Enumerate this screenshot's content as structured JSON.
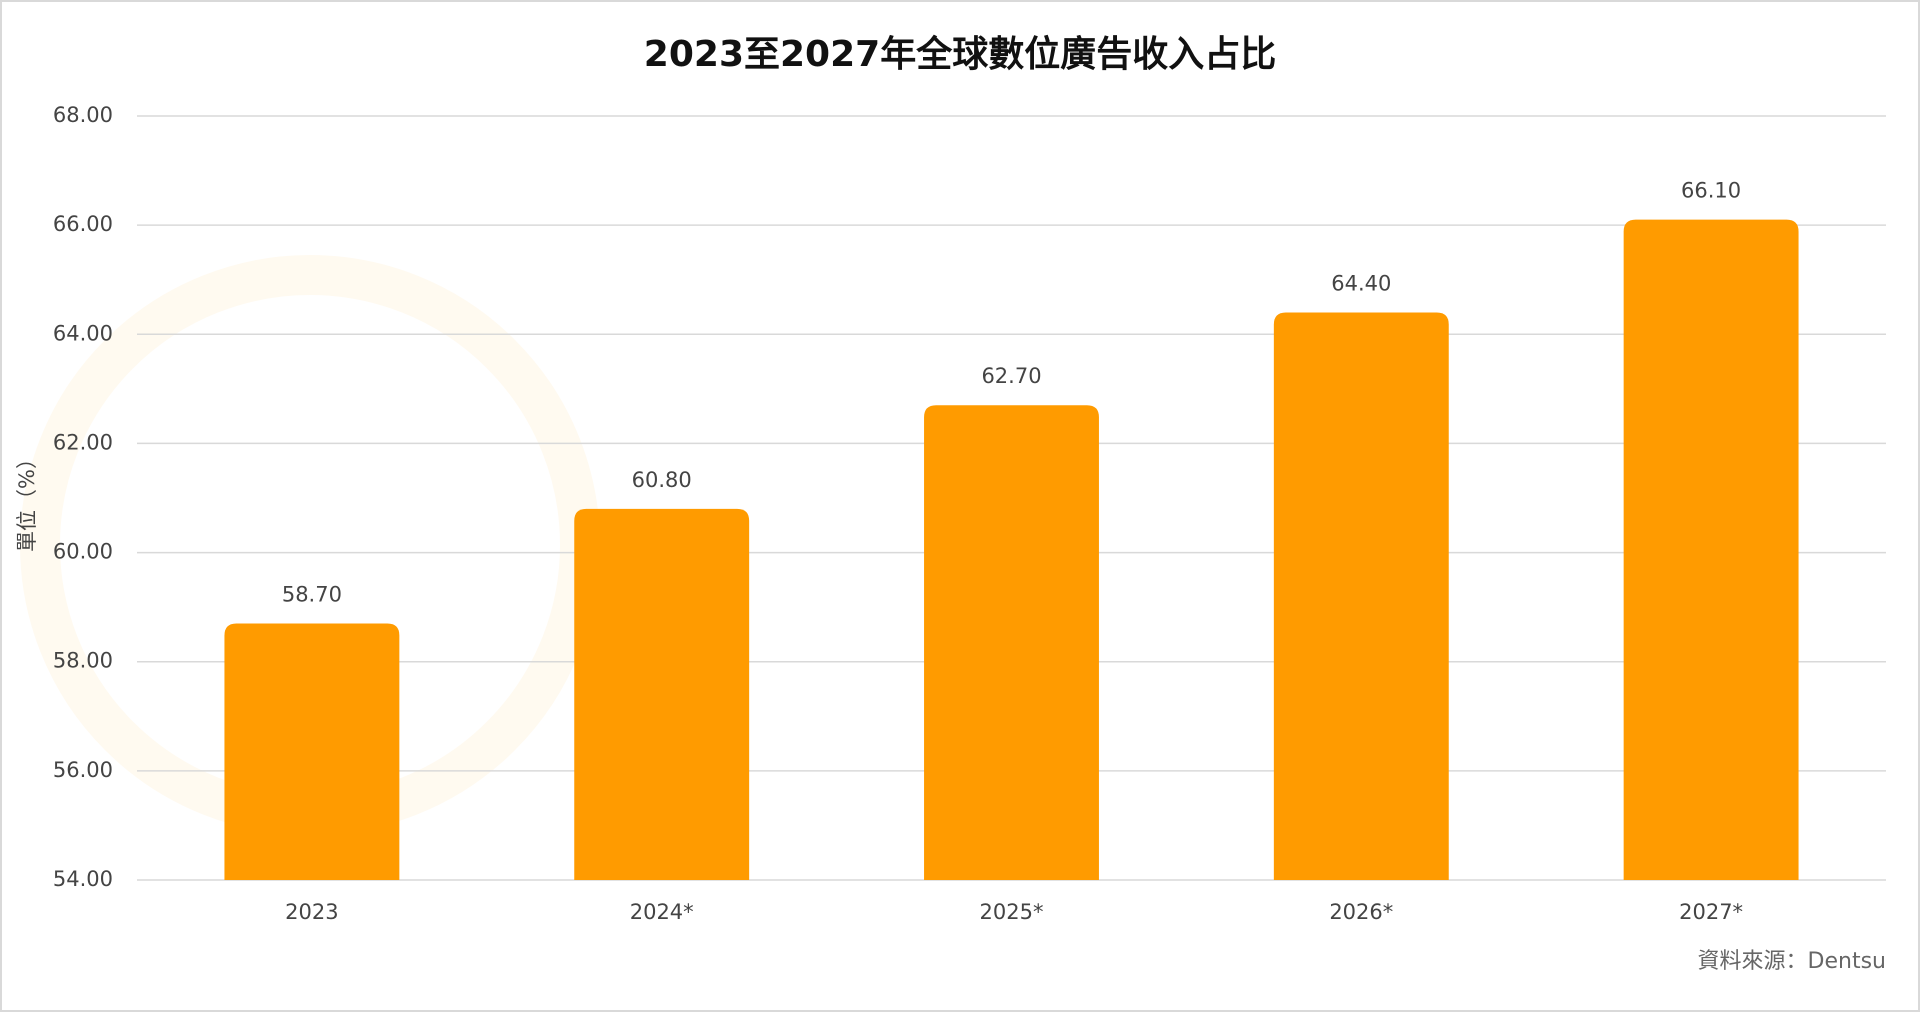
{
  "chart_data": {
    "type": "bar",
    "title": "2023至2027年全球數位廣告收入占比",
    "y_label": "單位（%）",
    "source": "資料來源：Dentsu",
    "categories": [
      "2023",
      "2024*",
      "2025*",
      "2026*",
      "2027*"
    ],
    "values": [
      58.7,
      60.8,
      62.7,
      64.4,
      66.1
    ],
    "value_labels": [
      "58.70",
      "60.80",
      "62.70",
      "64.40",
      "66.10"
    ],
    "color": "#ff9b00",
    "ylim": [
      54,
      68
    ],
    "yticks": [
      {
        "value": 54,
        "label": "54.00"
      },
      {
        "value": 56,
        "label": "56.00"
      },
      {
        "value": 58,
        "label": "58.00"
      },
      {
        "value": 60,
        "label": "60.00"
      },
      {
        "value": 62,
        "label": "62.00"
      },
      {
        "value": 64,
        "label": "64.00"
      },
      {
        "value": 66,
        "label": "66.00"
      },
      {
        "value": 68,
        "label": "68.00"
      }
    ],
    "grid": true
  }
}
